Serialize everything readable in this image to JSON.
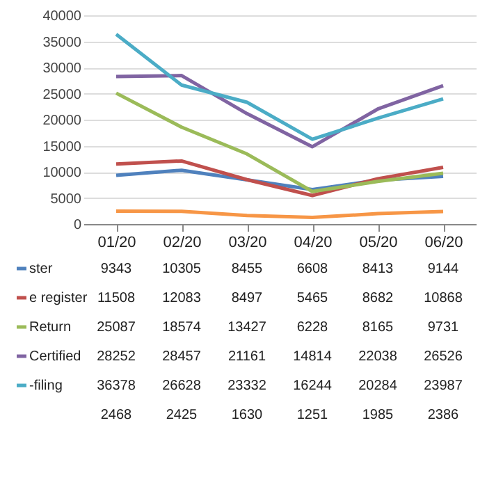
{
  "chart_data": {
    "type": "line",
    "categories": [
      "01/20",
      "02/20",
      "03/20",
      "04/20",
      "05/20",
      "06/20"
    ],
    "series": [
      {
        "name": "ster",
        "color": "#4f81bd",
        "values": [
          9343,
          10305,
          8455,
          6608,
          8413,
          9144
        ]
      },
      {
        "name": "e register",
        "color": "#c0504d",
        "values": [
          11508,
          12083,
          8497,
          5465,
          8682,
          10868
        ]
      },
      {
        "name": "Return",
        "color": "#9bbb59",
        "values": [
          25087,
          18574,
          13427,
          6228,
          8165,
          9731
        ]
      },
      {
        "name": "Certified",
        "color": "#8064a2",
        "values": [
          28252,
          28457,
          21161,
          14814,
          22038,
          26526
        ]
      },
      {
        "name": "-filing",
        "color": "#4bacc6",
        "values": [
          36378,
          26628,
          23332,
          16244,
          20284,
          23987
        ]
      },
      {
        "color": "#f79646",
        "values": [
          2468,
          2425,
          1630,
          1251,
          1985,
          2386
        ]
      }
    ],
    "ylim": [
      0,
      40000
    ],
    "yticks": [
      0,
      5000,
      10000,
      15000,
      20000,
      25000,
      30000,
      35000,
      40000
    ],
    "grid": "y",
    "data_labels": true,
    "legend": "bottom"
  }
}
